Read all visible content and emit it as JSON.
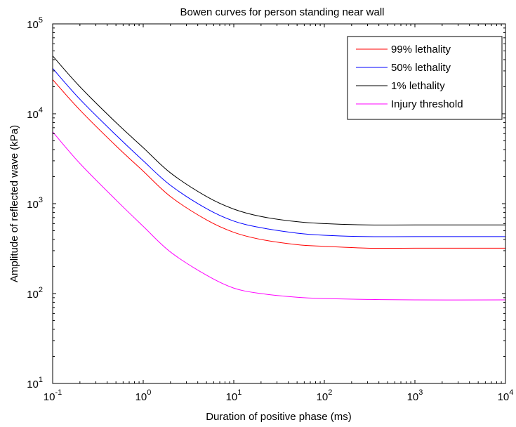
{
  "chart_data": {
    "type": "line",
    "title": "Bowen curves for person standing near wall",
    "xlabel": "Duration of positive phase (ms)",
    "ylabel": "Amplitude of reflected wave (kPa)",
    "xscale": "log",
    "yscale": "log",
    "xlim": [
      0.1,
      10000
    ],
    "ylim": [
      10,
      100000
    ],
    "x_ticks": [
      {
        "base": "10",
        "exp": "-1"
      },
      {
        "base": "10",
        "exp": "0"
      },
      {
        "base": "10",
        "exp": "1"
      },
      {
        "base": "10",
        "exp": "2"
      },
      {
        "base": "10",
        "exp": "3"
      },
      {
        "base": "10",
        "exp": "4"
      }
    ],
    "y_ticks": [
      {
        "base": "10",
        "exp": "1"
      },
      {
        "base": "10",
        "exp": "2"
      },
      {
        "base": "10",
        "exp": "3"
      },
      {
        "base": "10",
        "exp": "4"
      },
      {
        "base": "10",
        "exp": "5"
      }
    ],
    "grid": false,
    "legend_position": "top-right",
    "x": [
      0.1,
      0.2,
      0.5,
      1,
      2,
      5,
      10,
      20,
      50,
      100,
      300,
      1000,
      10000
    ],
    "series": [
      {
        "name": "99% lethality",
        "color": "#ff0000",
        "values": [
          24000,
          11000,
          4400,
          2300,
          1200,
          660,
          480,
          400,
          350,
          335,
          320,
          320,
          320
        ]
      },
      {
        "name": "50% lethality",
        "color": "#0000ff",
        "values": [
          32000,
          14500,
          5800,
          3000,
          1600,
          880,
          640,
          540,
          470,
          445,
          430,
          430,
          430
        ]
      },
      {
        "name": "1% lethality",
        "color": "#000000",
        "values": [
          44000,
          20000,
          8000,
          4200,
          2200,
          1200,
          870,
          720,
          630,
          600,
          580,
          580,
          580
        ]
      },
      {
        "name": "Injury threshold",
        "color": "#ff00ff",
        "values": [
          6300,
          2800,
          1100,
          560,
          290,
          160,
          115,
          100,
          91,
          88,
          86,
          85,
          85
        ]
      }
    ]
  }
}
